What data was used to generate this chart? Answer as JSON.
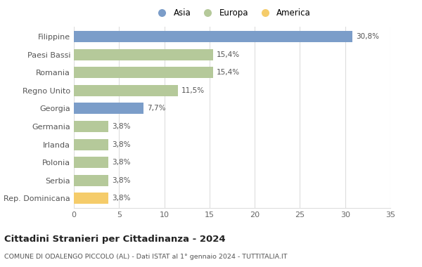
{
  "categories": [
    "Filippine",
    "Paesi Bassi",
    "Romania",
    "Regno Unito",
    "Georgia",
    "Germania",
    "Irlanda",
    "Polonia",
    "Serbia",
    "Rep. Dominicana"
  ],
  "values": [
    30.8,
    15.4,
    15.4,
    11.5,
    7.7,
    3.8,
    3.8,
    3.8,
    3.8,
    3.8
  ],
  "labels": [
    "30,8%",
    "15,4%",
    "15,4%",
    "11,5%",
    "7,7%",
    "3,8%",
    "3,8%",
    "3,8%",
    "3,8%",
    "3,8%"
  ],
  "colors": [
    "#7b9dc9",
    "#b5c99a",
    "#b5c99a",
    "#b5c99a",
    "#7b9dc9",
    "#b5c99a",
    "#b5c99a",
    "#b5c99a",
    "#b5c99a",
    "#f5cc6a"
  ],
  "legend_labels": [
    "Asia",
    "Europa",
    "America"
  ],
  "legend_colors": [
    "#7b9dc9",
    "#b5c99a",
    "#f5cc6a"
  ],
  "title": "Cittadini Stranieri per Cittadinanza - 2024",
  "subtitle": "COMUNE DI ODALENGO PICCOLO (AL) - Dati ISTAT al 1° gennaio 2024 - TUTTITALIA.IT",
  "xlim": [
    0,
    35
  ],
  "xticks": [
    0,
    5,
    10,
    15,
    20,
    25,
    30,
    35
  ],
  "background_color": "#ffffff",
  "grid_color": "#dddddd",
  "bar_height": 0.62
}
